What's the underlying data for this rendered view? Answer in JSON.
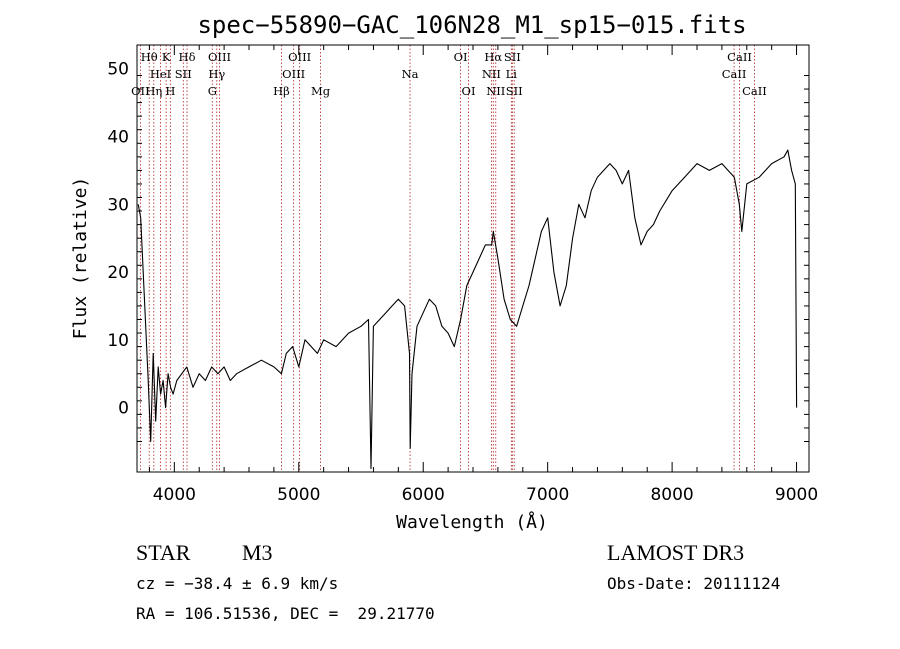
{
  "chart_data": {
    "type": "line",
    "title": "spec−55890−GAC_106N28_M1_sp15−015.fits",
    "xlabel": "Wavelength (Å)",
    "ylabel": "Flux (relative)",
    "xlim": [
      3700,
      9100
    ],
    "ylim": [
      -9.5,
      53.5
    ],
    "xticks": [
      4000,
      5000,
      6000,
      7000,
      8000,
      9000
    ],
    "yticks": [
      0,
      10,
      20,
      30,
      40,
      50
    ],
    "x_tick_labels": [
      "4000",
      "5000",
      "6000",
      "7000",
      "8000",
      "9000"
    ],
    "y_tick_labels": [
      "0",
      "10",
      "20",
      "30",
      "40",
      "50"
    ],
    "line_color": "#000000",
    "marker_color": "#b22222",
    "series": [
      {
        "name": "flux",
        "x": [
          3710,
          3730,
          3750,
          3770,
          3790,
          3810,
          3830,
          3850,
          3870,
          3890,
          3910,
          3930,
          3950,
          3970,
          3990,
          4020,
          4060,
          4100,
          4150,
          4200,
          4250,
          4300,
          4350,
          4400,
          4450,
          4500,
          4600,
          4700,
          4800,
          4860,
          4900,
          4950,
          5000,
          5050,
          5100,
          5150,
          5200,
          5300,
          5400,
          5500,
          5560,
          5580,
          5600,
          5650,
          5700,
          5750,
          5800,
          5850,
          5890,
          5895,
          5910,
          5950,
          6000,
          6050,
          6100,
          6150,
          6200,
          6250,
          6300,
          6350,
          6400,
          6450,
          6500,
          6550,
          6563,
          6600,
          6650,
          6700,
          6750,
          6800,
          6850,
          6900,
          6950,
          7000,
          7050,
          7100,
          7150,
          7200,
          7250,
          7300,
          7350,
          7400,
          7450,
          7500,
          7550,
          7600,
          7650,
          7700,
          7750,
          7800,
          7850,
          7900,
          8000,
          8100,
          8200,
          8300,
          8400,
          8500,
          8540,
          8560,
          8600,
          8700,
          8800,
          8900,
          8930,
          8960,
          8990,
          9000
        ],
        "y": [
          30,
          28,
          20,
          12,
          4,
          -5,
          8,
          -2,
          6,
          2,
          4,
          0,
          5,
          3,
          2,
          4,
          5,
          6,
          3,
          5,
          4,
          6,
          5,
          6,
          4,
          5,
          6,
          7,
          6,
          5,
          8,
          9,
          6,
          10,
          9,
          8,
          10,
          9,
          11,
          12,
          13,
          -9,
          12,
          13,
          14,
          15,
          16,
          15,
          8,
          -6,
          5,
          12,
          14,
          16,
          15,
          12,
          11,
          9,
          13,
          18,
          20,
          22,
          24,
          24,
          26,
          22,
          16,
          13,
          12,
          15,
          18,
          22,
          26,
          28,
          20,
          15,
          18,
          25,
          30,
          28,
          32,
          34,
          35,
          36,
          35,
          33,
          35,
          28,
          24,
          26,
          27,
          29,
          32,
          34,
          36,
          35,
          36,
          34,
          30,
          26,
          33,
          34,
          36,
          37,
          38,
          35,
          33,
          0
        ]
      }
    ],
    "line_markers": [
      {
        "label": "OII",
        "wl": 3727,
        "row": 2
      },
      {
        "label": "Hθ",
        "wl": 3798,
        "row": 0
      },
      {
        "label": "Hη",
        "wl": 3835,
        "row": 2
      },
      {
        "label": "HeI",
        "wl": 3889,
        "row": 1
      },
      {
        "label": "K",
        "wl": 3934,
        "row": 0
      },
      {
        "label": "H",
        "wl": 3968,
        "row": 2
      },
      {
        "label": "SII",
        "wl": 4072,
        "row": 1
      },
      {
        "label": "Hδ",
        "wl": 4102,
        "row": 0
      },
      {
        "label": "G",
        "wl": 4305,
        "row": 2
      },
      {
        "label": "Hγ",
        "wl": 4341,
        "row": 1
      },
      {
        "label": "OIII",
        "wl": 4363,
        "row": 0
      },
      {
        "label": "Hβ",
        "wl": 4861,
        "row": 2
      },
      {
        "label": "OIII",
        "wl": 4959,
        "row": 1
      },
      {
        "label": "OIII",
        "wl": 5007,
        "row": 0
      },
      {
        "label": "Mg",
        "wl": 5175,
        "row": 2
      },
      {
        "label": "Na",
        "wl": 5894,
        "row": 1
      },
      {
        "label": "OI",
        "wl": 6300,
        "row": 0
      },
      {
        "label": "OI",
        "wl": 6364,
        "row": 2
      },
      {
        "label": "NII",
        "wl": 6548,
        "row": 1
      },
      {
        "label": "Hα",
        "wl": 6563,
        "row": 0
      },
      {
        "label": "NII",
        "wl": 6583,
        "row": 2
      },
      {
        "label": "SII",
        "wl": 6716,
        "row": 0
      },
      {
        "label": "Li",
        "wl": 6708,
        "row": 1
      },
      {
        "label": "SII",
        "wl": 6731,
        "row": 2
      },
      {
        "label": "CaII",
        "wl": 8498,
        "row": 1
      },
      {
        "label": "CaII",
        "wl": 8542,
        "row": 0
      },
      {
        "label": "CaII",
        "wl": 8662,
        "row": 2
      }
    ]
  },
  "info": {
    "object_type": "STAR",
    "subclass": "M3",
    "survey": "LAMOST DR3",
    "cz": "cz = −38.4 ± 6.9 km/s",
    "obs_date": "Obs-Date: 20111124",
    "coords": "RA = 106.51536, DEC =  29.21770"
  }
}
